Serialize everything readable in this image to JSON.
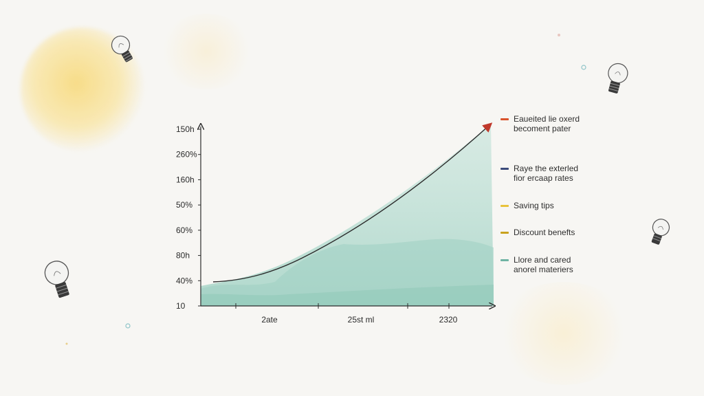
{
  "chart_data": {
    "type": "area",
    "y_tick_labels": [
      "150h",
      "260%",
      "160h",
      "50%",
      "60%",
      "80h",
      "40%",
      "10"
    ],
    "x_tick_labels": [
      "2ate",
      "25st ml",
      "2320"
    ],
    "series": [
      {
        "name": "Eaueited lie oxerd\nbecoment pater",
        "color": "#d9532c"
      },
      {
        "name": "Raye the exterled\nfior ercaap rates",
        "color": "#3b4a7a"
      },
      {
        "name": "Saving tips",
        "color": "#e8c23a"
      },
      {
        "name": "Discount benefts",
        "color": "#c9a21e"
      },
      {
        "name": "Llore and cared\nanorel materiers",
        "color": "#6fb3a3"
      }
    ],
    "trend_line": {
      "color": "#2b2b2b",
      "arrow_color": "#c0392b"
    },
    "area_color": "#a9d6c9",
    "grid": false,
    "legend_position": "right"
  }
}
